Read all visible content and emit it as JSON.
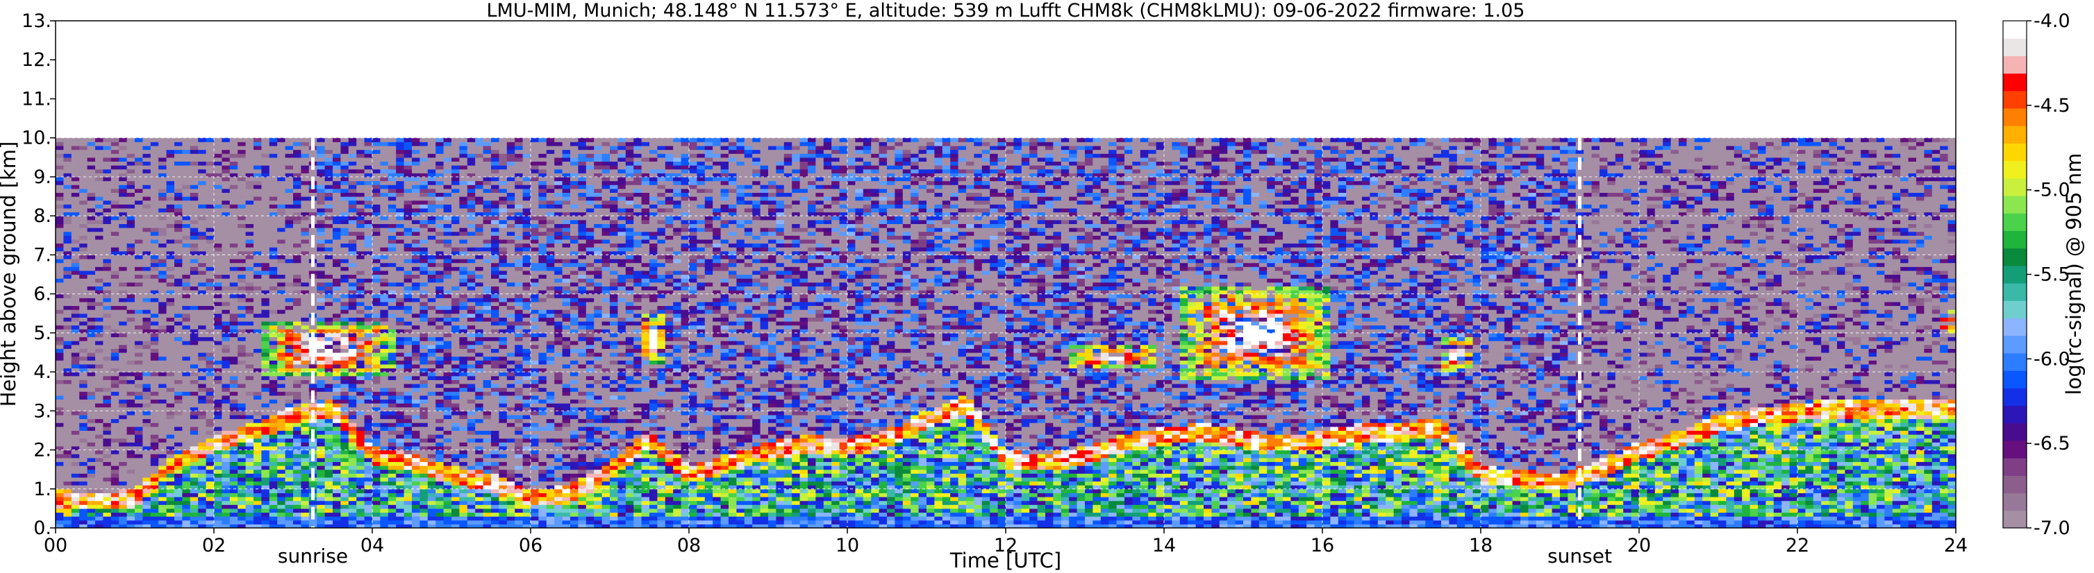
{
  "chart_data": {
    "type": "heatmap",
    "title": "LMU-MIM, Munich; 48.148° N 11.573° E, altitude: 539 m    Lufft CHM8k (CHM8kLMU): 09-06-2022    firmware: 1.05",
    "xlabel": "Time [UTC]",
    "ylabel": "Height above ground [km]",
    "xlim": [
      0,
      24
    ],
    "ylim": [
      0,
      13
    ],
    "x_tick_labels": [
      "00",
      "02",
      "04",
      "06",
      "08",
      "10",
      "12",
      "14",
      "16",
      "18",
      "20",
      "22",
      "24"
    ],
    "y_tick_labels": [
      "0.",
      "1.",
      "2.",
      "3.",
      "4.",
      "5.",
      "6.",
      "7.",
      "8.",
      "9.",
      "10.",
      "11.",
      "12.",
      "13."
    ],
    "grid": true,
    "data_top_km": 10,
    "colorbar": {
      "label": "log(rc-signal) @ 905 nm",
      "range": [
        -7.0,
        -4.0
      ],
      "tick_labels": [
        "-4.0",
        "-4.5",
        "-5.0",
        "-5.5",
        "-6.0",
        "-6.5",
        "-7.0"
      ],
      "colors": [
        "#a58fa5",
        "#987898",
        "#8c5e8c",
        "#7f3f86",
        "#65107e",
        "#4a0c8f",
        "#2d16b8",
        "#1430e6",
        "#0a57ff",
        "#2d7dff",
        "#5c9bff",
        "#8cb4ff",
        "#6fcfcf",
        "#3ab8a8",
        "#149e78",
        "#0a8a3c",
        "#1fb43c",
        "#4ad24a",
        "#8ce650",
        "#c8f03c",
        "#f0f01e",
        "#ffd700",
        "#ffb000",
        "#ff8000",
        "#ff4000",
        "#ff0000",
        "#f5b4b4",
        "#ebe6e6",
        "#ffffff"
      ]
    },
    "annotations": [
      {
        "text": "sunrise",
        "x_hours": 3.25
      },
      {
        "text": "sunset",
        "x_hours": 19.25
      }
    ],
    "features": [
      {
        "kind": "boundary_layer_top",
        "x_hours": [
          0,
          0.5,
          1,
          1.5,
          2,
          2.5,
          3,
          3.5,
          4,
          4.5,
          5,
          5.5,
          6,
          6.5,
          7,
          7.5,
          8,
          8.5,
          9,
          9.5,
          10,
          10.5,
          11,
          11.5,
          12,
          12.5,
          13,
          13.5,
          14,
          14.5,
          15,
          15.5,
          16,
          16.5,
          17,
          17.5,
          18,
          18.5,
          19,
          19.5,
          20,
          20.5,
          21,
          21.5,
          22,
          22.5,
          23,
          23.5,
          24
        ],
        "top_km": [
          0.9,
          0.8,
          0.9,
          1.8,
          2.3,
          2.6,
          3.0,
          3.2,
          2.0,
          1.8,
          1.5,
          1.3,
          0.9,
          1.0,
          1.6,
          2.4,
          1.5,
          1.8,
          2.1,
          2.3,
          2.2,
          2.4,
          2.9,
          3.3,
          1.9,
          1.8,
          2.0,
          2.3,
          2.5,
          2.6,
          2.4,
          2.3,
          2.4,
          2.6,
          2.6,
          2.7,
          1.5,
          1.4,
          1.3,
          1.6,
          2.1,
          2.4,
          2.8,
          3.0,
          3.1,
          3.2,
          3.2,
          3.2,
          3.2
        ]
      },
      {
        "kind": "cloud",
        "x_hours": [
          2.6,
          4.3
        ],
        "z_km": [
          3.9,
          5.3
        ]
      },
      {
        "kind": "cloud",
        "x_hours": [
          7.4,
          7.7
        ],
        "z_km": [
          4.2,
          5.5
        ]
      },
      {
        "kind": "cloud",
        "x_hours": [
          12.8,
          13.9
        ],
        "z_km": [
          4.1,
          4.7
        ]
      },
      {
        "kind": "cloud",
        "x_hours": [
          14.2,
          16.1
        ],
        "z_km": [
          3.8,
          6.2
        ]
      },
      {
        "kind": "cloud",
        "x_hours": [
          17.5,
          17.9
        ],
        "z_km": [
          4.0,
          4.9
        ]
      },
      {
        "kind": "cloud",
        "x_hours": [
          23.8,
          24.0
        ],
        "z_km": [
          5.0,
          5.6
        ]
      }
    ]
  }
}
